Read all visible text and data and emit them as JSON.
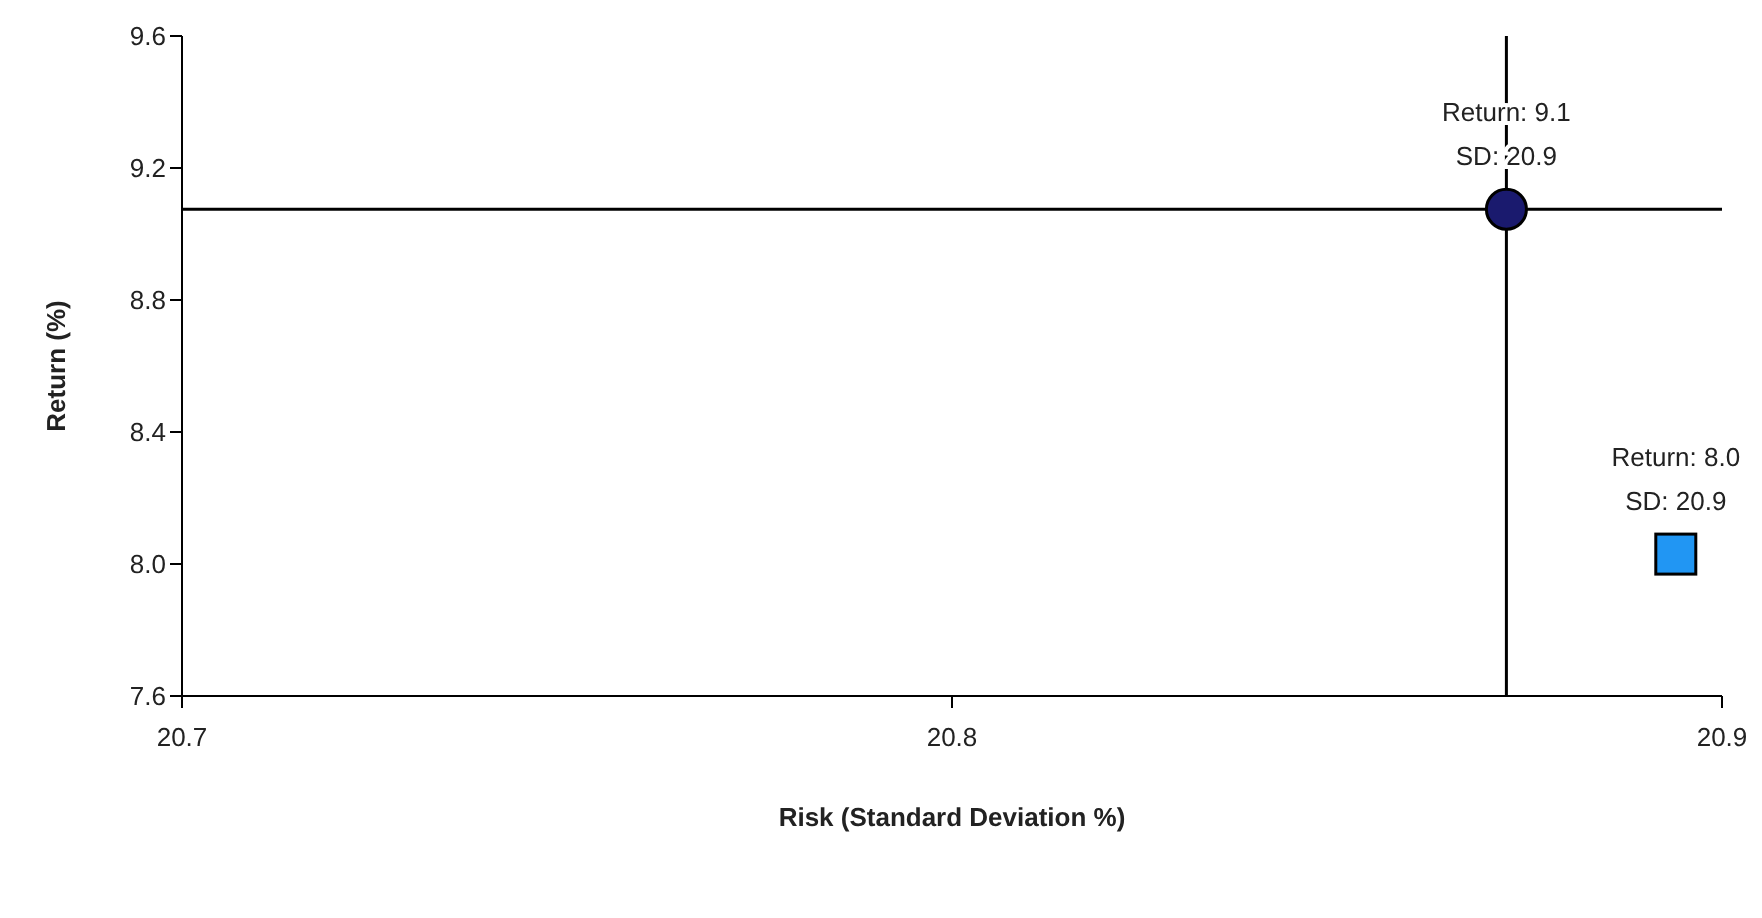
{
  "chart_data": {
    "type": "scatter",
    "xlabel": "Risk (Standard Deviation %)",
    "ylabel": "Return (%)",
    "series": [
      {
        "color": "#2196f3",
        "marker": "square",
        "x": [
          20.894
        ],
        "values": [
          8.03
        ]
      },
      {
        "color": "#1a1a6e",
        "marker": "circle",
        "x": [
          20.872
        ],
        "values": [
          9.075
        ]
      }
    ],
    "xlim": [
      20.7,
      20.9
    ],
    "xticks": [
      20.7,
      20.8,
      20.9
    ],
    "ylim": [
      7.6,
      9.6
    ],
    "yticks": [
      7.6,
      {
        "value": 8,
        "label": "8.0"
      },
      8.4,
      8.8,
      9.2,
      9.6
    ],
    "grid": false,
    "ref_lines": [
      {
        "axis": "x",
        "value": 20.872,
        "color": "#000000"
      },
      {
        "axis": "y",
        "value": 9.075,
        "color": "#000000"
      }
    ],
    "annotations": [
      {
        "text": "Return: 9.1\nSD: 20.9",
        "x": 20.872,
        "y": 9.075
      },
      {
        "text": "Return: 8.0\nSD: 20.9",
        "x": 20.894,
        "y": 8.03
      }
    ]
  }
}
